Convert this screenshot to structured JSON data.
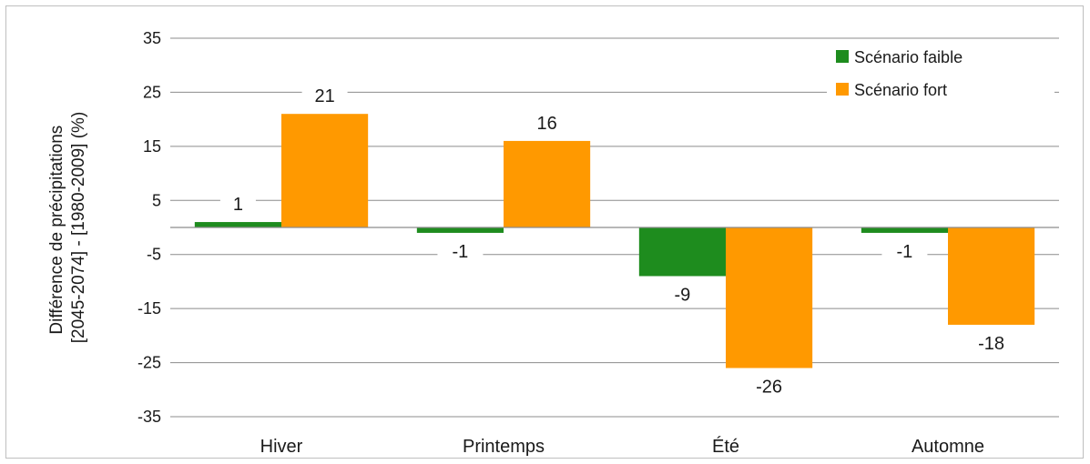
{
  "chart_data": {
    "type": "bar",
    "title": "",
    "xlabel": "",
    "ylabel_lines": [
      "Différence de précipitations",
      "[2045-2074] - [1980-2009] (%)"
    ],
    "categories": [
      "Hiver",
      "Printemps",
      "Été",
      "Automne"
    ],
    "series": [
      {
        "name": "Scénario faible",
        "color": "#1e8c1e",
        "values": [
          1,
          -1,
          -9,
          -1
        ]
      },
      {
        "name": "Scénario fort",
        "color": "#ff9900",
        "values": [
          21,
          16,
          -26,
          -18
        ]
      }
    ],
    "ylim": [
      -35,
      35
    ],
    "yticks": [
      35,
      25,
      15,
      5,
      -5,
      -15,
      -25,
      -35
    ],
    "grid": true,
    "legend_position": "top-right",
    "data_labels": true
  }
}
